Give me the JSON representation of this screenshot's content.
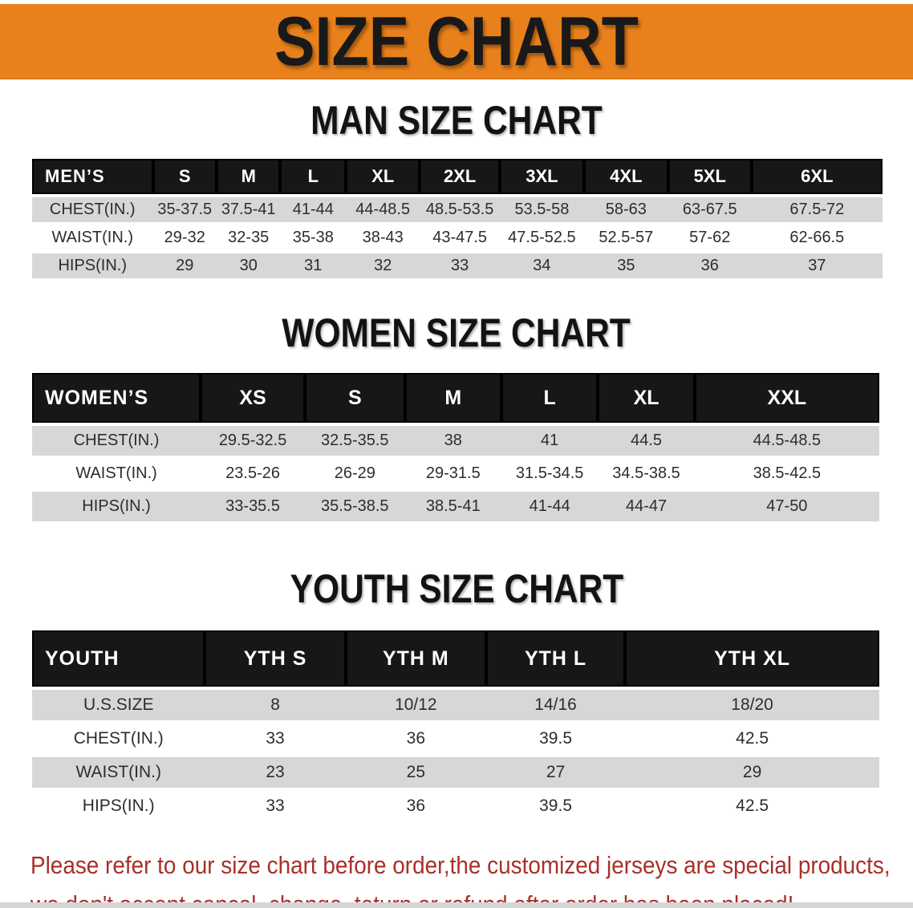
{
  "banner": {
    "title": "SIZE CHART",
    "bg_color": "#E8811C",
    "text_color": "#191919"
  },
  "colors": {
    "table_header_bg": "#171717",
    "table_header_text": "#FFFFFF",
    "row_alt_gray": "#D7D7D7",
    "row_white": "#FFFFFF",
    "body_text": "#2D2D2D",
    "disclaimer_red": "#A9302A"
  },
  "sections": [
    {
      "heading": "MAN SIZE CHART",
      "table": {
        "corner_label": "MEN’S",
        "columns": [
          "S",
          "M",
          "L",
          "XL",
          "2XL",
          "3XL",
          "4XL",
          "5XL",
          "6XL"
        ],
        "rows": [
          {
            "label": "CHEST(IN.)",
            "values": [
              "35-37.5",
              "37.5-41",
              "41-44",
              "44-48.5",
              "48.5-53.5",
              "53.5-58",
              "58-63",
              "63-67.5",
              "67.5-72"
            ]
          },
          {
            "label": "WAIST(IN.)",
            "values": [
              "29-32",
              "32-35",
              "35-38",
              "38-43",
              "43-47.5",
              "47.5-52.5",
              "52.5-57",
              "57-62",
              "62-66.5"
            ]
          },
          {
            "label": "HIPS(IN.)",
            "values": [
              "29",
              "30",
              "31",
              "32",
              "33",
              "34",
              "35",
              "36",
              "37"
            ]
          }
        ]
      }
    },
    {
      "heading": "WOMEN SIZE CHART",
      "table": {
        "corner_label": "WOMEN’S",
        "columns": [
          "XS",
          "S",
          "M",
          "L",
          "XL",
          "XXL"
        ],
        "rows": [
          {
            "label": "CHEST(IN.)",
            "values": [
              "29.5-32.5",
              "32.5-35.5",
              "38",
              "41",
              "44.5",
              "44.5-48.5"
            ]
          },
          {
            "label": "WAIST(IN.)",
            "values": [
              "23.5-26",
              "26-29",
              "29-31.5",
              "31.5-34.5",
              "34.5-38.5",
              "38.5-42.5"
            ]
          },
          {
            "label": "HIPS(IN.)",
            "values": [
              "33-35.5",
              "35.5-38.5",
              "38.5-41",
              "41-44",
              "44-47",
              "47-50"
            ]
          }
        ]
      }
    },
    {
      "heading": "YOUTH SIZE CHART",
      "table": {
        "corner_label": "YOUTH",
        "columns": [
          "YTH S",
          "YTH M",
          "YTH L",
          "YTH XL"
        ],
        "rows": [
          {
            "label": "U.S.SIZE",
            "values": [
              "8",
              "10/12",
              "14/16",
              "18/20"
            ]
          },
          {
            "label": "CHEST(IN.)",
            "values": [
              "33",
              "36",
              "39.5",
              "42.5"
            ]
          },
          {
            "label": "WAIST(IN.)",
            "values": [
              "23",
              "25",
              "27",
              "29"
            ]
          },
          {
            "label": "HIPS(IN.)",
            "values": [
              "33",
              "36",
              "39.5",
              "42.5"
            ]
          }
        ]
      }
    }
  ],
  "disclaimer": {
    "line1": "Please refer to our size chart before order,the customized jerseys are special products,",
    "line2": "we don't accept cancel, change, teturn or refund after order has been placed!"
  }
}
